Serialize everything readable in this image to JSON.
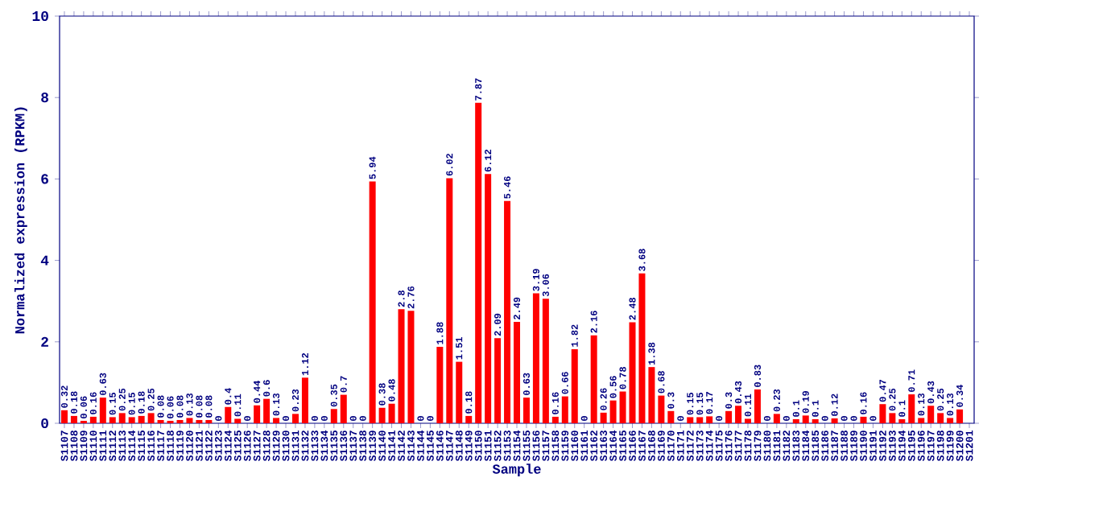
{
  "chart_data": {
    "type": "bar",
    "xlabel": "Sample",
    "ylabel": "Normalized expression (RPKM)",
    "categories": [
      "S1107",
      "S1108",
      "S1109",
      "S1110",
      "S1111",
      "S1112",
      "S1113",
      "S1114",
      "S1115",
      "S1116",
      "S1117",
      "S1118",
      "S1119",
      "S1120",
      "S1121",
      "S1122",
      "S1123",
      "S1124",
      "S1125",
      "S1126",
      "S1127",
      "S1128",
      "S1129",
      "S1130",
      "S1131",
      "S1132",
      "S1133",
      "S1134",
      "S1135",
      "S1136",
      "S1137",
      "S1138",
      "S1139",
      "S1140",
      "S1141",
      "S1142",
      "S1143",
      "S1144",
      "S1145",
      "S1146",
      "S1147",
      "S1148",
      "S1149",
      "S1150",
      "S1151",
      "S1152",
      "S1153",
      "S1154",
      "S1155",
      "S1156",
      "S1157",
      "S1158",
      "S1159",
      "S1160",
      "S1161",
      "S1162",
      "S1163",
      "S1164",
      "S1165",
      "S1166",
      "S1167",
      "S1168",
      "S1169",
      "S1170",
      "S1171",
      "S1172",
      "S1173",
      "S1174",
      "S1175",
      "S1176",
      "S1177",
      "S1178",
      "S1179",
      "S1180",
      "S1181",
      "S1182",
      "S1183",
      "S1184",
      "S1185",
      "S1186",
      "S1187",
      "S1188",
      "S1189",
      "S1190",
      "S1191",
      "S1192",
      "S1193",
      "S1194",
      "S1195",
      "S1196",
      "S1197",
      "S1198",
      "S1199",
      "S1200",
      "S1201"
    ],
    "values": [
      0.32,
      0.18,
      0.06,
      0.16,
      0.63,
      0.15,
      0.25,
      0.15,
      0.18,
      0.25,
      0.08,
      0.06,
      0.08,
      0.13,
      0.08,
      0.08,
      0,
      0.4,
      0.11,
      0,
      0.44,
      0.6,
      0.13,
      0,
      0.23,
      1.12,
      0,
      0,
      0.35,
      0.7,
      0,
      0,
      5.94,
      0.38,
      0.48,
      2.8,
      2.76,
      0,
      0,
      1.88,
      6.02,
      1.51,
      0.18,
      7.87,
      6.12,
      2.09,
      5.46,
      2.49,
      0.63,
      3.19,
      3.06,
      0.16,
      0.66,
      1.82,
      0,
      2.16,
      0.26,
      0.56,
      0.78,
      2.48,
      3.68,
      1.38,
      0.68,
      0.3,
      0,
      0.15,
      0.15,
      0.17,
      0,
      0.3,
      0.43,
      0.11,
      0.83,
      0,
      0.23,
      0,
      0.1,
      0.19,
      0.1,
      0,
      0.12,
      0,
      0,
      0.16,
      0,
      0.47,
      0.25,
      0.1,
      0.71,
      0.13,
      0.43,
      0.25,
      0.13,
      0.34,
      null
    ],
    "value_labels": [
      "0.32",
      "0.18",
      "0.06",
      "0.16",
      "0.63",
      "0.15",
      "0.25",
      "0.15",
      "0.18",
      "0.25",
      "0.08",
      "0.06",
      "0.08",
      "0.13",
      "0.08",
      "0.08",
      "0",
      "0.4",
      "0.11",
      "0",
      "0.44",
      "0.6",
      "0.13",
      "0",
      "0.23",
      "1.12",
      "0",
      "0",
      "0.35",
      "0.7",
      "0",
      "0",
      "5.94",
      "0.38",
      "0.48",
      "2.8",
      "2.76",
      "0",
      "0",
      "1.88",
      "6.02",
      "1.51",
      "0.18",
      "7.87",
      "6.12",
      "2.09",
      "5.46",
      "2.49",
      "0.63",
      "3.19",
      "3.06",
      "0.16",
      "0.66",
      "1.82",
      "0",
      "2.16",
      "0.26",
      "0.56",
      "0.78",
      "2.48",
      "3.68",
      "1.38",
      "0.68",
      "0.3",
      "0",
      "0.15",
      "0.15",
      "0.17",
      "0",
      "0.3",
      "0.43",
      "0.11",
      "0.83",
      "0",
      "0.23",
      "0",
      "0.1",
      "0.19",
      "0.1",
      "0",
      "0.12",
      "0",
      "0",
      "0.16",
      "0",
      "0.47",
      "0.25",
      "0.1",
      "0.71",
      "0.13",
      "0.43",
      "0.25",
      "0.13",
      "0.34",
      null
    ],
    "color": "#ff0000",
    "ylim": [
      0,
      10
    ],
    "yticks": [
      0,
      2,
      4,
      6,
      8,
      10
    ],
    "grid": false
  }
}
